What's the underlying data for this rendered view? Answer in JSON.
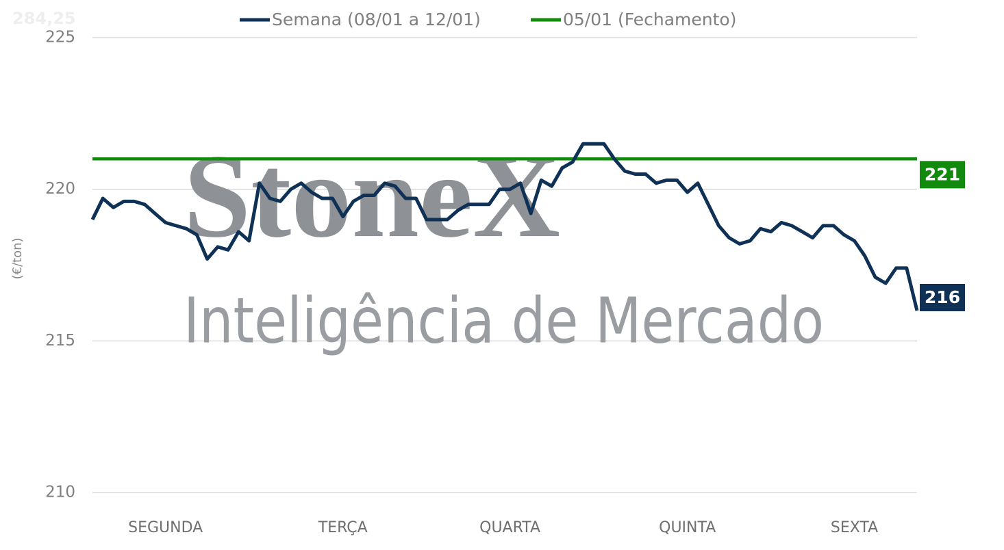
{
  "chart_data": {
    "type": "line",
    "corner_note": "284,25",
    "watermark": [
      "StoneX",
      "Inteligência de Mercado"
    ],
    "ylabel": "(€/ton)",
    "ylim": [
      210,
      225
    ],
    "yticks": [
      210,
      215,
      220,
      225
    ],
    "grid": true,
    "legend": "top",
    "end_labels": true,
    "categories": [
      null,
      null,
      null,
      null,
      null,
      null,
      null,
      "SEGUNDA",
      null,
      null,
      null,
      null,
      null,
      null,
      null,
      null,
      null,
      null,
      null,
      null,
      null,
      null,
      null,
      null,
      "TERÇA",
      null,
      null,
      null,
      null,
      null,
      null,
      null,
      null,
      null,
      null,
      null,
      null,
      null,
      null,
      null,
      "QUARTA",
      null,
      null,
      null,
      null,
      null,
      null,
      null,
      null,
      null,
      null,
      null,
      null,
      null,
      null,
      null,
      null,
      "QUINTA",
      null,
      null,
      null,
      null,
      null,
      null,
      null,
      null,
      null,
      null,
      null,
      null,
      null,
      null,
      null,
      "SEXTA",
      null,
      null,
      null,
      null,
      null,
      null
    ],
    "series": [
      {
        "name": "Semana (08/01 a 12/01)",
        "color": "#0e3155",
        "values": [
          219.0,
          219.7,
          219.4,
          219.6,
          219.6,
          219.5,
          219.2,
          218.9,
          218.8,
          218.7,
          218.5,
          217.7,
          218.1,
          218.0,
          218.6,
          218.3,
          220.2,
          219.7,
          219.6,
          220.0,
          220.2,
          219.9,
          219.7,
          219.7,
          219.1,
          219.6,
          219.8,
          219.8,
          220.2,
          220.1,
          219.7,
          219.7,
          219.0,
          219.0,
          219.0,
          219.3,
          219.5,
          219.5,
          219.5,
          220.0,
          220.0,
          220.2,
          219.2,
          220.3,
          220.1,
          220.7,
          220.9,
          221.5,
          221.5,
          221.5,
          221.0,
          220.6,
          220.5,
          220.5,
          220.2,
          220.3,
          220.3,
          219.9,
          220.2,
          219.5,
          218.8,
          218.4,
          218.2,
          218.3,
          218.7,
          218.6,
          218.9,
          218.8,
          218.6,
          218.4,
          218.8,
          218.8,
          218.5,
          218.3,
          217.8,
          217.1,
          216.9,
          217.4,
          217.4,
          216
        ]
      },
      {
        "name": "05/01 (Fechamento)",
        "color": "#118a0e",
        "values": [
          221,
          221,
          221,
          221,
          221,
          221,
          221,
          221,
          221,
          221,
          221,
          221,
          221,
          221,
          221,
          221,
          221,
          221,
          221,
          221,
          221,
          221,
          221,
          221,
          221,
          221,
          221,
          221,
          221,
          221,
          221,
          221,
          221,
          221,
          221,
          221,
          221,
          221,
          221,
          221,
          221,
          221,
          221,
          221,
          221,
          221,
          221,
          221,
          221,
          221,
          221,
          221,
          221,
          221,
          221,
          221,
          221,
          221,
          221,
          221,
          221,
          221,
          221,
          221,
          221,
          221,
          221,
          221,
          221,
          221,
          221,
          221,
          221,
          221,
          221,
          221,
          221,
          221,
          221,
          221
        ]
      }
    ]
  }
}
